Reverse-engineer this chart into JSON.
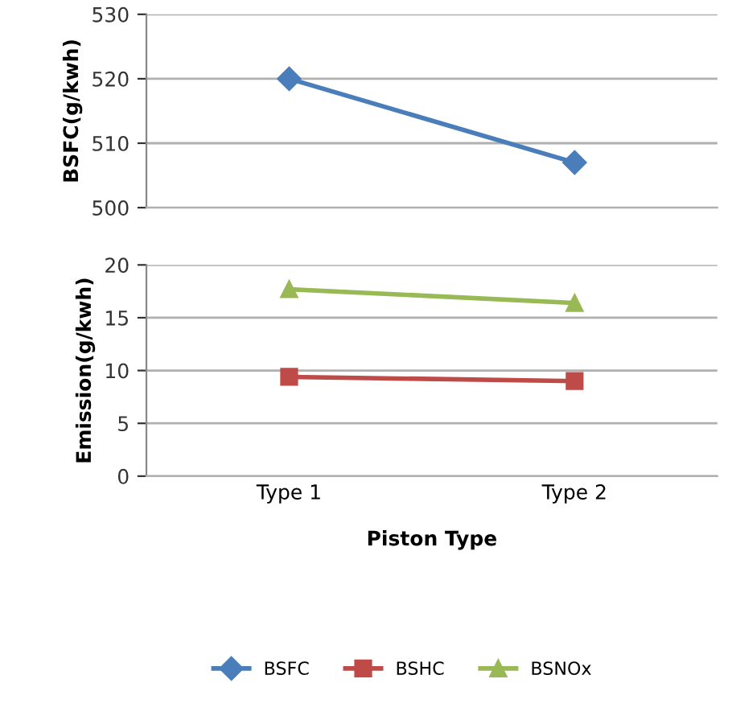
{
  "chart_data": [
    {
      "type": "line",
      "ylabel": "BSFC(g/kwh)",
      "categories": [
        null,
        null
      ],
      "series": [
        {
          "name": "BSFC",
          "color": "#4a7ebb",
          "marker": "diamond",
          "values": [
            520,
            507
          ]
        }
      ],
      "ylim": [
        500,
        530
      ],
      "yticks": [
        500,
        510,
        520,
        530
      ],
      "grid": "y",
      "tick_labels": "y",
      "legend": "bottom"
    },
    {
      "type": "line",
      "ylabel": "Emission(g/kwh)",
      "xlabel": "Piston Type",
      "categories": [
        "Type 1",
        "Type 2"
      ],
      "series": [
        {
          "name": "BSHC",
          "color": "#be4b48",
          "marker": "square",
          "values": [
            9.4,
            9.0
          ]
        },
        {
          "name": "BSNOx",
          "color": "#98b954",
          "marker": "triangle",
          "values": [
            17.7,
            16.4
          ]
        }
      ],
      "ylim": [
        0,
        20
      ],
      "yticks": [
        0,
        5,
        10,
        15,
        20
      ],
      "grid": "y",
      "legend": "bottom"
    }
  ]
}
